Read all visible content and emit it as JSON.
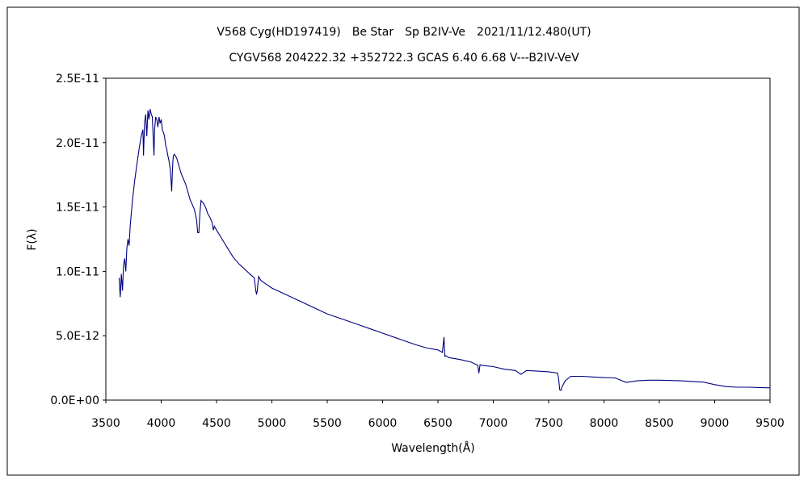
{
  "chart_data": {
    "type": "line",
    "title": "V568 Cyg(HD197419)　Be Star　Sp B2IV-Ve　2021/11/12.480(UT)",
    "subtitle": "CYGV568 204222.32 +352722.3 GCAS 6.40 6.68 V---B2IV-VeV",
    "xlabel": "Wavelength(Å)",
    "ylabel": "F(λ)",
    "xlim": [
      3500,
      9500
    ],
    "ylim": [
      0,
      2.5e-11
    ],
    "x_ticks": [
      3500,
      4000,
      4500,
      5000,
      5500,
      6000,
      6500,
      7000,
      7500,
      8000,
      8500,
      9000,
      9500
    ],
    "x_tick_labels": [
      "3500",
      "4000",
      "4500",
      "5000",
      "5500",
      "6000",
      "6500",
      "7000",
      "7500",
      "8000",
      "8500",
      "9000",
      "9500"
    ],
    "y_ticks": [
      0,
      5e-12,
      1e-11,
      1.5e-11,
      2e-11,
      2.5e-11
    ],
    "y_tick_labels": [
      "0.0E+00",
      "5.0E-12",
      "1.0E-11",
      "1.5E-11",
      "2.0E-11",
      "2.5E-11"
    ],
    "grid": false,
    "legend": "none",
    "line_color": "#000080",
    "series": [
      {
        "x": [
          3620,
          3630,
          3640,
          3650,
          3660,
          3670,
          3680,
          3690,
          3700,
          3710,
          3720,
          3740,
          3760,
          3780,
          3800,
          3820,
          3835,
          3840,
          3850,
          3860,
          3870,
          3880,
          3890,
          3900,
          3910,
          3920,
          3930,
          3935,
          3940,
          3950,
          3960,
          3970,
          3980,
          3990,
          4000,
          4010,
          4020,
          4030,
          4040,
          4050,
          4060,
          4070,
          4080,
          4090,
          4095,
          4100,
          4105,
          4110,
          4120,
          4140,
          4160,
          4180,
          4200,
          4220,
          4240,
          4260,
          4280,
          4300,
          4320,
          4330,
          4340,
          4350,
          4360,
          4380,
          4400,
          4420,
          4440,
          4460,
          4471,
          4480,
          4500,
          4550,
          4600,
          4650,
          4700,
          4750,
          4800,
          4840,
          4855,
          4861,
          4868,
          4880,
          4900,
          4950,
          5000,
          5100,
          5200,
          5300,
          5400,
          5500,
          5600,
          5700,
          5800,
          5900,
          6000,
          6100,
          6200,
          6300,
          6400,
          6500,
          6540,
          6555,
          6562,
          6570,
          6600,
          6700,
          6800,
          6860,
          6870,
          6880,
          6900,
          7000,
          7100,
          7200,
          7250,
          7300,
          7400,
          7500,
          7580,
          7590,
          7600,
          7610,
          7620,
          7650,
          7700,
          7800,
          7900,
          8000,
          8100,
          8200,
          8300,
          8400,
          8500,
          8600,
          8700,
          8800,
          8900,
          9000,
          9100,
          9200,
          9300,
          9400,
          9500
        ],
        "values": [
          9.5e-12,
          8e-12,
          9.8e-12,
          8.5e-12,
          1.05e-11,
          1.1e-11,
          1e-11,
          1.18e-11,
          1.25e-11,
          1.2e-11,
          1.35e-11,
          1.55e-11,
          1.7e-11,
          1.83e-11,
          1.95e-11,
          2.05e-11,
          2.1e-11,
          1.9e-11,
          2.15e-11,
          2.22e-11,
          2.05e-11,
          2.25e-11,
          2.18e-11,
          2.26e-11,
          2.22e-11,
          2.2e-11,
          2e-11,
          1.9e-11,
          2.1e-11,
          2.2e-11,
          2.18e-11,
          2.12e-11,
          2.2e-11,
          2.15e-11,
          2.18e-11,
          2.1e-11,
          2.08e-11,
          2.05e-11,
          1.98e-11,
          1.95e-11,
          1.9e-11,
          1.86e-11,
          1.8e-11,
          1.7e-11,
          1.62e-11,
          1.75e-11,
          1.85e-11,
          1.9e-11,
          1.91e-11,
          1.88e-11,
          1.82e-11,
          1.76e-11,
          1.72e-11,
          1.68e-11,
          1.62e-11,
          1.56e-11,
          1.52e-11,
          1.48e-11,
          1.4e-11,
          1.3e-11,
          1.3e-11,
          1.45e-11,
          1.55e-11,
          1.53e-11,
          1.5e-11,
          1.45e-11,
          1.42e-11,
          1.38e-11,
          1.32e-11,
          1.35e-11,
          1.32e-11,
          1.25e-11,
          1.18e-11,
          1.11e-11,
          1.06e-11,
          1.02e-11,
          9.8e-12,
          9.5e-12,
          8.5e-12,
          8.2e-12,
          8.5e-12,
          9.6e-12,
          9.3e-12,
          9e-12,
          8.7e-12,
          8.3e-12,
          7.9e-12,
          7.5e-12,
          7.1e-12,
          6.7e-12,
          6.4e-12,
          6.1e-12,
          5.8e-12,
          5.5e-12,
          5.2e-12,
          4.9e-12,
          4.6e-12,
          4.3e-12,
          4.05e-12,
          3.9e-12,
          3.7e-12,
          4.9e-12,
          3.4e-12,
          3.45e-12,
          3.3e-12,
          3.15e-12,
          2.95e-12,
          2.7e-12,
          2.1e-12,
          2.75e-12,
          2.7e-12,
          2.6e-12,
          2.4e-12,
          2.3e-12,
          2e-12,
          2.3e-12,
          2.25e-12,
          2.2e-12,
          2.1e-12,
          1.7e-12,
          8e-13,
          7.5e-13,
          1e-12,
          1.5e-12,
          1.85e-12,
          1.85e-12,
          1.8e-12,
          1.75e-12,
          1.72e-12,
          1.38e-12,
          1.5e-12,
          1.55e-12,
          1.55e-12,
          1.52e-12,
          1.5e-12,
          1.45e-12,
          1.4e-12,
          1.2e-12,
          1.05e-12,
          1e-12,
          1e-12,
          9.8e-13,
          9.5e-13
        ]
      }
    ]
  }
}
